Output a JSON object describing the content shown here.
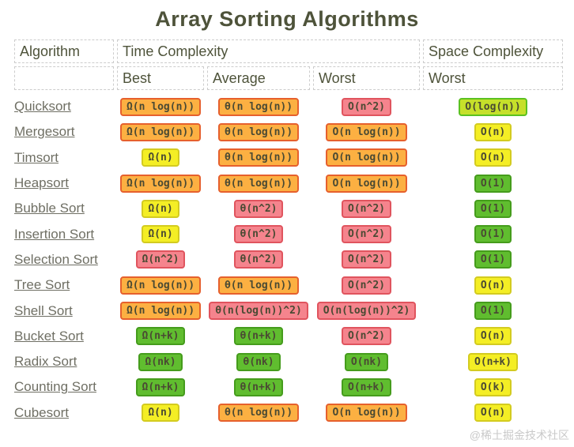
{
  "title": "Array Sorting Algorithms",
  "watermark": "@稀土掘金技术社区",
  "header": {
    "algorithm": "Algorithm",
    "time_complexity": "Time Complexity",
    "space_complexity": "Space Complexity",
    "sub_best": "Best",
    "sub_average": "Average",
    "sub_worst_time": "Worst",
    "sub_worst_space": "Worst"
  },
  "colors": {
    "title_text": "#4e533a",
    "link_text": "#6f6f64",
    "badge_text": "#4a4a33",
    "header_border": "#cccccc",
    "watermark_text": "#c9c9c9",
    "badge": {
      "orange": {
        "bg": "#fcb042",
        "border": "#e6602d"
      },
      "red": {
        "bg": "#f5848d",
        "border": "#e0545e"
      },
      "yellow": {
        "bg": "#f4ee25",
        "border": "#d3cb20"
      },
      "green": {
        "bg": "#60bd2f",
        "border": "#459c1c"
      },
      "yellowgreen": {
        "bg": "#c6e02a",
        "border": "#5bc121"
      }
    }
  },
  "rows": [
    {
      "algorithm": "Quicksort",
      "cells": [
        {
          "text": "Ω(n log(n))",
          "color": "orange"
        },
        {
          "text": "θ(n log(n))",
          "color": "orange"
        },
        {
          "text": "O(n^2)",
          "color": "red"
        },
        {
          "text": "O(log(n))",
          "color": "yellowgreen"
        }
      ]
    },
    {
      "algorithm": "Mergesort",
      "cells": [
        {
          "text": "Ω(n log(n))",
          "color": "orange"
        },
        {
          "text": "θ(n log(n))",
          "color": "orange"
        },
        {
          "text": "O(n log(n))",
          "color": "orange"
        },
        {
          "text": "O(n)",
          "color": "yellow"
        }
      ]
    },
    {
      "algorithm": "Timsort",
      "cells": [
        {
          "text": "Ω(n)",
          "color": "yellow"
        },
        {
          "text": "θ(n log(n))",
          "color": "orange"
        },
        {
          "text": "O(n log(n))",
          "color": "orange"
        },
        {
          "text": "O(n)",
          "color": "yellow"
        }
      ]
    },
    {
      "algorithm": "Heapsort",
      "cells": [
        {
          "text": "Ω(n log(n))",
          "color": "orange"
        },
        {
          "text": "θ(n log(n))",
          "color": "orange"
        },
        {
          "text": "O(n log(n))",
          "color": "orange"
        },
        {
          "text": "O(1)",
          "color": "green"
        }
      ]
    },
    {
      "algorithm": "Bubble Sort",
      "cells": [
        {
          "text": "Ω(n)",
          "color": "yellow"
        },
        {
          "text": "θ(n^2)",
          "color": "red"
        },
        {
          "text": "O(n^2)",
          "color": "red"
        },
        {
          "text": "O(1)",
          "color": "green"
        }
      ]
    },
    {
      "algorithm": "Insertion Sort",
      "cells": [
        {
          "text": "Ω(n)",
          "color": "yellow"
        },
        {
          "text": "θ(n^2)",
          "color": "red"
        },
        {
          "text": "O(n^2)",
          "color": "red"
        },
        {
          "text": "O(1)",
          "color": "green"
        }
      ]
    },
    {
      "algorithm": "Selection Sort",
      "cells": [
        {
          "text": "Ω(n^2)",
          "color": "red"
        },
        {
          "text": "θ(n^2)",
          "color": "red"
        },
        {
          "text": "O(n^2)",
          "color": "red"
        },
        {
          "text": "O(1)",
          "color": "green"
        }
      ]
    },
    {
      "algorithm": "Tree Sort",
      "cells": [
        {
          "text": "Ω(n log(n))",
          "color": "orange"
        },
        {
          "text": "θ(n log(n))",
          "color": "orange"
        },
        {
          "text": "O(n^2)",
          "color": "red"
        },
        {
          "text": "O(n)",
          "color": "yellow"
        }
      ]
    },
    {
      "algorithm": "Shell Sort",
      "cells": [
        {
          "text": "Ω(n log(n))",
          "color": "orange"
        },
        {
          "text": "θ(n(log(n))^2)",
          "color": "red"
        },
        {
          "text": "O(n(log(n))^2)",
          "color": "red"
        },
        {
          "text": "O(1)",
          "color": "green"
        }
      ]
    },
    {
      "algorithm": "Bucket Sort",
      "cells": [
        {
          "text": "Ω(n+k)",
          "color": "green"
        },
        {
          "text": "θ(n+k)",
          "color": "green"
        },
        {
          "text": "O(n^2)",
          "color": "red"
        },
        {
          "text": "O(n)",
          "color": "yellow"
        }
      ]
    },
    {
      "algorithm": "Radix Sort",
      "cells": [
        {
          "text": "Ω(nk)",
          "color": "green"
        },
        {
          "text": "θ(nk)",
          "color": "green"
        },
        {
          "text": "O(nk)",
          "color": "green"
        },
        {
          "text": "O(n+k)",
          "color": "yellow"
        }
      ]
    },
    {
      "algorithm": "Counting Sort",
      "cells": [
        {
          "text": "Ω(n+k)",
          "color": "green"
        },
        {
          "text": "θ(n+k)",
          "color": "green"
        },
        {
          "text": "O(n+k)",
          "color": "green"
        },
        {
          "text": "O(k)",
          "color": "yellow"
        }
      ]
    },
    {
      "algorithm": "Cubesort",
      "cells": [
        {
          "text": "Ω(n)",
          "color": "yellow"
        },
        {
          "text": "θ(n log(n))",
          "color": "orange"
        },
        {
          "text": "O(n log(n))",
          "color": "orange"
        },
        {
          "text": "O(n)",
          "color": "yellow"
        }
      ]
    }
  ]
}
